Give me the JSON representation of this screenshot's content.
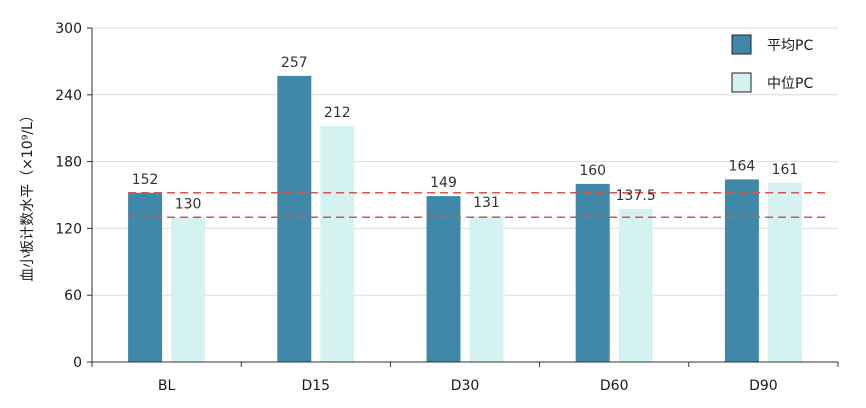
{
  "chart_data": {
    "type": "bar",
    "categories": [
      "BL",
      "D15",
      "D30",
      "D60",
      "D90"
    ],
    "series": [
      {
        "name": "平均PC",
        "values": [
          152,
          257,
          149,
          160,
          164
        ],
        "labels": [
          "152",
          "257",
          "149",
          "160",
          "164"
        ],
        "color": "#3F88A8"
      },
      {
        "name": "中位PC",
        "values": [
          130,
          212,
          131,
          137.5,
          161
        ],
        "labels": [
          "130",
          "212",
          "131",
          "137.5",
          "161"
        ],
        "color": "#D4F2EF"
      }
    ],
    "ylabel": "血小板计数水平（×10⁹/L）",
    "ylim": [
      0,
      300
    ],
    "yticks": [
      0,
      60,
      120,
      180,
      240,
      300
    ],
    "grid": true,
    "legend_position": "top-right",
    "reference_lines": [
      {
        "value": 152,
        "color": "#D9534F",
        "style": "dashed"
      },
      {
        "value": 130,
        "color": "#D9534F",
        "style": "dashed"
      }
    ]
  }
}
